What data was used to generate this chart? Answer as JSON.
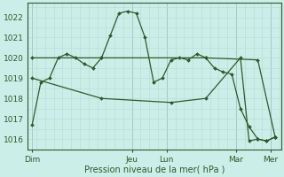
{
  "title": "",
  "xlabel": "Pression niveau de la mer( hPa )",
  "ylabel": "",
  "bg_color": "#cceee8",
  "grid_color": "#b8ddd8",
  "line_color": "#2d5a2d",
  "marker_color": "#2d5a2d",
  "ylim": [
    1015.5,
    1022.7
  ],
  "yticks": [
    1016,
    1017,
    1018,
    1019,
    1020,
    1021,
    1022
  ],
  "xlim": [
    0,
    175
  ],
  "day_positions": [
    3,
    72,
    96,
    144,
    168
  ],
  "day_labels": [
    "Dim",
    "Jeu",
    "Lun",
    "Mar",
    "Mer"
  ],
  "vline_positions": [
    3,
    72,
    96,
    144,
    168
  ],
  "minor_vline_step": 6,
  "series1_x": [
    3,
    9,
    15,
    21,
    27,
    33,
    39,
    45,
    51,
    57,
    63,
    69,
    75,
    81,
    87,
    93,
    99,
    105,
    111,
    117,
    123,
    129,
    135,
    141,
    147,
    153,
    159,
    165,
    171
  ],
  "series1_y": [
    1016.7,
    1018.8,
    1019.0,
    1020.0,
    1020.2,
    1020.0,
    1019.7,
    1019.5,
    1020.0,
    1021.1,
    1022.2,
    1022.3,
    1022.2,
    1021.0,
    1018.8,
    1019.0,
    1019.9,
    1020.0,
    1019.9,
    1020.2,
    1020.0,
    1019.5,
    1019.3,
    1019.2,
    1017.5,
    1016.6,
    1016.0,
    1015.9,
    1016.1
  ],
  "series2_x": [
    3,
    51,
    123,
    159,
    171
  ],
  "series2_y": [
    1020.0,
    1020.0,
    1020.0,
    1019.9,
    1016.1
  ],
  "series3_x": [
    3,
    51,
    99,
    123,
    147,
    153,
    159,
    165,
    171
  ],
  "series3_y": [
    1019.0,
    1018.0,
    1017.8,
    1018.0,
    1020.0,
    1015.9,
    1016.0,
    1015.9,
    1016.1
  ]
}
